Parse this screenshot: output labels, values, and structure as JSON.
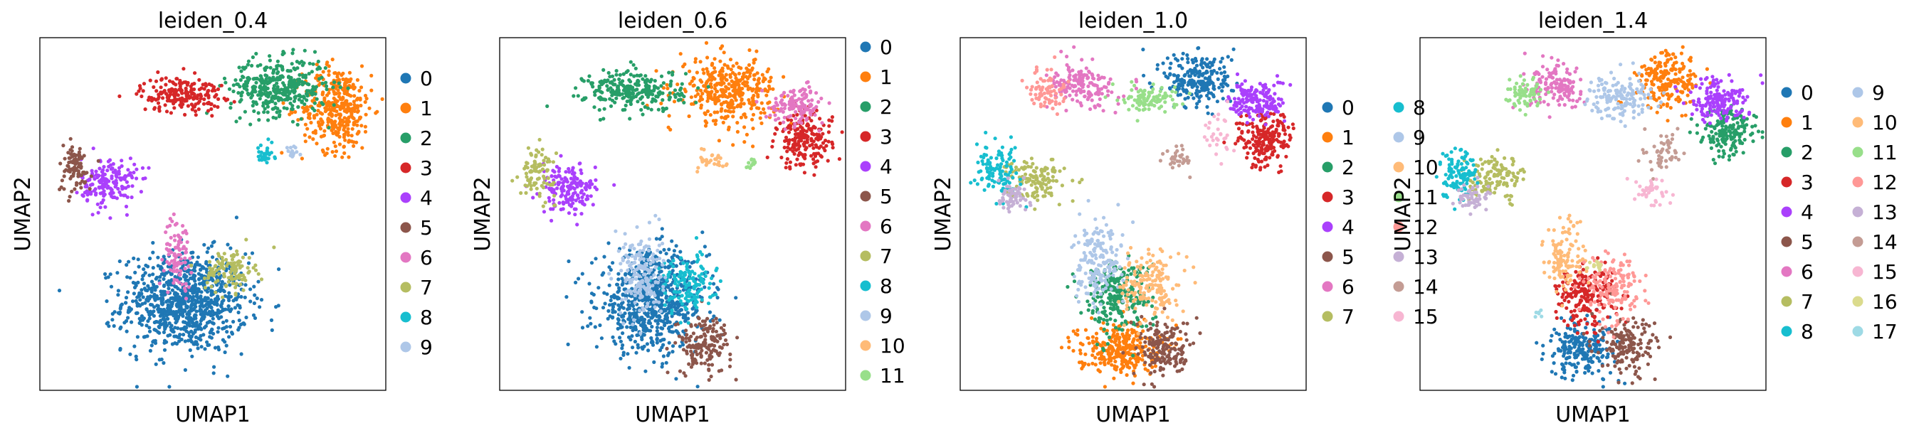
{
  "palette": [
    "#1f77b4",
    "#ff7f0e",
    "#279e68",
    "#d62728",
    "#aa40fc",
    "#8c564b",
    "#e377c2",
    "#b5bd61",
    "#17becf",
    "#aec7e8",
    "#ffbb78",
    "#98df8a",
    "#ff9896",
    "#c5b0d5",
    "#c49c94",
    "#f7b6d2",
    "#dbdb8d",
    "#9edae5"
  ],
  "chart_data": [
    {
      "type": "scatter",
      "title": "leiden_0.4",
      "xlabel": "UMAP1",
      "ylabel": "UMAP2",
      "grid": false,
      "legend_position": "right",
      "legend_columns": 1,
      "categories": [
        "0",
        "1",
        "2",
        "3",
        "4",
        "5",
        "6",
        "7",
        "8",
        "9"
      ],
      "clusters": [
        {
          "label": "0",
          "color": "#1f77b4",
          "center": [
            0.42,
            0.25
          ],
          "spread": [
            0.09,
            0.07
          ],
          "count": 900
        },
        {
          "label": "1",
          "color": "#ff7f0e",
          "center": [
            0.86,
            0.8
          ],
          "spread": [
            0.05,
            0.06
          ],
          "count": 380
        },
        {
          "label": "2",
          "color": "#279e68",
          "center": [
            0.69,
            0.86
          ],
          "spread": [
            0.07,
            0.04
          ],
          "count": 380
        },
        {
          "label": "3",
          "color": "#d62728",
          "center": [
            0.41,
            0.84
          ],
          "spread": [
            0.06,
            0.025
          ],
          "count": 200
        },
        {
          "label": "4",
          "color": "#aa40fc",
          "center": [
            0.2,
            0.59
          ],
          "spread": [
            0.04,
            0.035
          ],
          "count": 170
        },
        {
          "label": "5",
          "color": "#8c564b",
          "center": [
            0.1,
            0.63
          ],
          "spread": [
            0.025,
            0.035
          ],
          "count": 90
        },
        {
          "label": "6",
          "color": "#e377c2",
          "center": [
            0.4,
            0.39
          ],
          "spread": [
            0.02,
            0.05
          ],
          "count": 90
        },
        {
          "label": "7",
          "color": "#b5bd61",
          "center": [
            0.55,
            0.34
          ],
          "spread": [
            0.035,
            0.03
          ],
          "count": 110
        },
        {
          "label": "8",
          "color": "#17becf",
          "center": [
            0.65,
            0.67
          ],
          "spread": [
            0.015,
            0.015
          ],
          "count": 30
        },
        {
          "label": "9",
          "color": "#aec7e8",
          "center": [
            0.73,
            0.67
          ],
          "spread": [
            0.01,
            0.012
          ],
          "count": 15
        }
      ]
    },
    {
      "type": "scatter",
      "title": "leiden_0.6",
      "xlabel": "UMAP1",
      "ylabel": "UMAP2",
      "grid": false,
      "legend_position": "right",
      "legend_columns": 1,
      "categories": [
        "0",
        "1",
        "2",
        "3",
        "4",
        "5",
        "6",
        "7",
        "8",
        "9",
        "10",
        "11"
      ],
      "clusters": [
        {
          "label": "0",
          "color": "#1f77b4",
          "center": [
            0.44,
            0.25
          ],
          "spread": [
            0.08,
            0.07
          ],
          "count": 720
        },
        {
          "label": "1",
          "color": "#ff7f0e",
          "center": [
            0.66,
            0.85
          ],
          "spread": [
            0.07,
            0.045
          ],
          "count": 380
        },
        {
          "label": "2",
          "color": "#279e68",
          "center": [
            0.39,
            0.85
          ],
          "spread": [
            0.07,
            0.03
          ],
          "count": 260
        },
        {
          "label": "3",
          "color": "#d62728",
          "center": [
            0.88,
            0.71
          ],
          "spread": [
            0.04,
            0.04
          ],
          "count": 200
        },
        {
          "label": "4",
          "color": "#aa40fc",
          "center": [
            0.2,
            0.57
          ],
          "spread": [
            0.04,
            0.035
          ],
          "count": 170
        },
        {
          "label": "5",
          "color": "#8c564b",
          "center": [
            0.59,
            0.13
          ],
          "spread": [
            0.04,
            0.04
          ],
          "count": 160
        },
        {
          "label": "6",
          "color": "#e377c2",
          "center": [
            0.86,
            0.81
          ],
          "spread": [
            0.04,
            0.025
          ],
          "count": 130
        },
        {
          "label": "7",
          "color": "#b5bd61",
          "center": [
            0.11,
            0.62
          ],
          "spread": [
            0.025,
            0.035
          ],
          "count": 90
        },
        {
          "label": "8",
          "color": "#17becf",
          "center": [
            0.54,
            0.3
          ],
          "spread": [
            0.04,
            0.04
          ],
          "count": 140
        },
        {
          "label": "9",
          "color": "#aec7e8",
          "center": [
            0.41,
            0.33
          ],
          "spread": [
            0.03,
            0.06
          ],
          "count": 180
        },
        {
          "label": "10",
          "color": "#ffbb78",
          "center": [
            0.62,
            0.65
          ],
          "spread": [
            0.02,
            0.015
          ],
          "count": 30
        },
        {
          "label": "11",
          "color": "#98df8a",
          "center": [
            0.73,
            0.65
          ],
          "spread": [
            0.008,
            0.01
          ],
          "count": 12
        }
      ]
    },
    {
      "type": "scatter",
      "title": "leiden_1.0",
      "xlabel": "UMAP1",
      "ylabel": "UMAP2",
      "grid": false,
      "legend_position": "right",
      "legend_columns": 2,
      "categories": [
        "0",
        "1",
        "2",
        "3",
        "4",
        "5",
        "6",
        "7",
        "8",
        "9",
        "10",
        "11",
        "12",
        "13",
        "14",
        "15"
      ],
      "clusters": [
        {
          "label": "0",
          "color": "#1f77b4",
          "center": [
            0.69,
            0.88
          ],
          "spread": [
            0.05,
            0.04
          ],
          "count": 230
        },
        {
          "label": "1",
          "color": "#ff7f0e",
          "center": [
            0.46,
            0.12
          ],
          "spread": [
            0.06,
            0.035
          ],
          "count": 300
        },
        {
          "label": "2",
          "color": "#279e68",
          "center": [
            0.45,
            0.27
          ],
          "spread": [
            0.05,
            0.05
          ],
          "count": 260
        },
        {
          "label": "3",
          "color": "#d62728",
          "center": [
            0.88,
            0.71
          ],
          "spread": [
            0.04,
            0.04
          ],
          "count": 200
        },
        {
          "label": "4",
          "color": "#aa40fc",
          "center": [
            0.86,
            0.82
          ],
          "spread": [
            0.04,
            0.03
          ],
          "count": 160
        },
        {
          "label": "5",
          "color": "#8c564b",
          "center": [
            0.59,
            0.12
          ],
          "spread": [
            0.04,
            0.04
          ],
          "count": 170
        },
        {
          "label": "6",
          "color": "#e377c2",
          "center": [
            0.35,
            0.86
          ],
          "spread": [
            0.05,
            0.03
          ],
          "count": 160
        },
        {
          "label": "7",
          "color": "#b5bd61",
          "center": [
            0.22,
            0.6
          ],
          "spread": [
            0.04,
            0.03
          ],
          "count": 130
        },
        {
          "label": "8",
          "color": "#17becf",
          "center": [
            0.11,
            0.62
          ],
          "spread": [
            0.03,
            0.035
          ],
          "count": 120
        },
        {
          "label": "9",
          "color": "#aec7e8",
          "center": [
            0.4,
            0.36
          ],
          "spread": [
            0.035,
            0.06
          ],
          "count": 180
        },
        {
          "label": "10",
          "color": "#ffbb78",
          "center": [
            0.55,
            0.3
          ],
          "spread": [
            0.04,
            0.045
          ],
          "count": 170
        },
        {
          "label": "11",
          "color": "#98df8a",
          "center": [
            0.55,
            0.83
          ],
          "spread": [
            0.04,
            0.02
          ],
          "count": 100
        },
        {
          "label": "12",
          "color": "#ff9896",
          "center": [
            0.25,
            0.85
          ],
          "spread": [
            0.025,
            0.03
          ],
          "count": 80
        },
        {
          "label": "13",
          "color": "#c5b0d5",
          "center": [
            0.15,
            0.55
          ],
          "spread": [
            0.025,
            0.02
          ],
          "count": 60
        },
        {
          "label": "14",
          "color": "#c49c94",
          "center": [
            0.63,
            0.66
          ],
          "spread": [
            0.018,
            0.018
          ],
          "count": 30
        },
        {
          "label": "15",
          "color": "#f7b6d2",
          "center": [
            0.75,
            0.72
          ],
          "spread": [
            0.02,
            0.04
          ],
          "count": 30
        }
      ]
    },
    {
      "type": "scatter",
      "title": "leiden_1.4",
      "xlabel": "UMAP1",
      "ylabel": "UMAP2",
      "grid": false,
      "legend_position": "right",
      "legend_columns": 2,
      "categories": [
        "0",
        "1",
        "2",
        "3",
        "4",
        "5",
        "6",
        "7",
        "8",
        "9",
        "10",
        "11",
        "12",
        "13",
        "14",
        "15",
        "16",
        "17"
      ],
      "clusters": [
        {
          "label": "0",
          "color": "#1f77b4",
          "center": [
            0.47,
            0.12
          ],
          "spread": [
            0.05,
            0.04
          ],
          "count": 220
        },
        {
          "label": "1",
          "color": "#ff7f0e",
          "center": [
            0.72,
            0.88
          ],
          "spread": [
            0.045,
            0.04
          ],
          "count": 200
        },
        {
          "label": "2",
          "color": "#279e68",
          "center": [
            0.89,
            0.73
          ],
          "spread": [
            0.04,
            0.035
          ],
          "count": 170
        },
        {
          "label": "3",
          "color": "#d62728",
          "center": [
            0.48,
            0.27
          ],
          "spread": [
            0.045,
            0.045
          ],
          "count": 210
        },
        {
          "label": "4",
          "color": "#aa40fc",
          "center": [
            0.86,
            0.82
          ],
          "spread": [
            0.045,
            0.03
          ],
          "count": 160
        },
        {
          "label": "5",
          "color": "#8c564b",
          "center": [
            0.6,
            0.12
          ],
          "spread": [
            0.04,
            0.04
          ],
          "count": 160
        },
        {
          "label": "6",
          "color": "#e377c2",
          "center": [
            0.4,
            0.86
          ],
          "spread": [
            0.045,
            0.03
          ],
          "count": 140
        },
        {
          "label": "7",
          "color": "#b5bd61",
          "center": [
            0.22,
            0.6
          ],
          "spread": [
            0.04,
            0.03
          ],
          "count": 130
        },
        {
          "label": "8",
          "color": "#17becf",
          "center": [
            0.11,
            0.62
          ],
          "spread": [
            0.03,
            0.035
          ],
          "count": 120
        },
        {
          "label": "9",
          "color": "#aec7e8",
          "center": [
            0.58,
            0.83
          ],
          "spread": [
            0.045,
            0.03
          ],
          "count": 150
        },
        {
          "label": "10",
          "color": "#ffbb78",
          "center": [
            0.42,
            0.38
          ],
          "spread": [
            0.03,
            0.05
          ],
          "count": 120
        },
        {
          "label": "11",
          "color": "#98df8a",
          "center": [
            0.3,
            0.84
          ],
          "spread": [
            0.025,
            0.025
          ],
          "count": 70
        },
        {
          "label": "12",
          "color": "#ff9896",
          "center": [
            0.56,
            0.29
          ],
          "spread": [
            0.04,
            0.045
          ],
          "count": 150
        },
        {
          "label": "13",
          "color": "#c5b0d5",
          "center": [
            0.15,
            0.55
          ],
          "spread": [
            0.025,
            0.02
          ],
          "count": 60
        },
        {
          "label": "14",
          "color": "#c49c94",
          "center": [
            0.71,
            0.67
          ],
          "spread": [
            0.025,
            0.03
          ],
          "count": 50
        },
        {
          "label": "15",
          "color": "#f7b6d2",
          "center": [
            0.67,
            0.56
          ],
          "spread": [
            0.025,
            0.02
          ],
          "count": 40
        },
        {
          "label": "16",
          "color": "#dbdb8d",
          "center": [
            0.51,
            0.36
          ],
          "spread": [
            0.015,
            0.01
          ],
          "count": 15
        },
        {
          "label": "17",
          "color": "#9edae5",
          "center": [
            0.34,
            0.22
          ],
          "spread": [
            0.006,
            0.01
          ],
          "count": 6
        }
      ]
    }
  ]
}
